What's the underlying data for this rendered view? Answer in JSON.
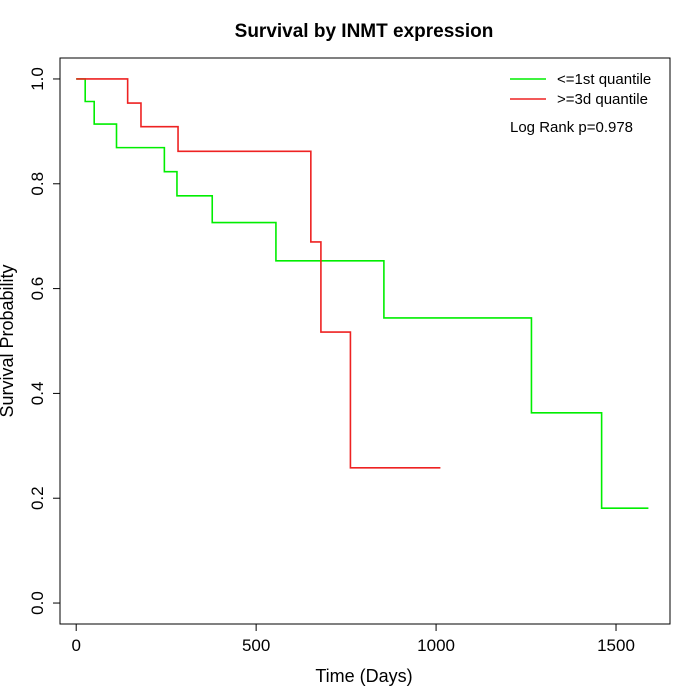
{
  "chart_data": {
    "type": "line",
    "title": "Survival by INMT expression",
    "xlabel": "Time (Days)",
    "ylabel": "Survival Probability",
    "xlim": [
      -45,
      1650
    ],
    "ylim": [
      -0.04,
      1.04
    ],
    "x_ticks": [
      0,
      500,
      1000,
      1500
    ],
    "y_ticks": [
      0.0,
      0.2,
      0.4,
      0.6,
      0.8,
      1.0
    ],
    "x_tick_labels": [
      "0",
      "500",
      "1000",
      "1500"
    ],
    "y_tick_labels": [
      "0.0",
      "0.2",
      "0.4",
      "0.6",
      "0.8",
      "1.0"
    ],
    "grid": false,
    "legend_position": "top-right",
    "annotation": "Log Rank p=0.978",
    "series": [
      {
        "name": "<=1st quantile",
        "color": "#00ee00",
        "steps": [
          [
            0,
            1.0
          ],
          [
            25,
            0.957
          ],
          [
            50,
            0.914
          ],
          [
            112,
            0.869
          ],
          [
            245,
            0.823
          ],
          [
            280,
            0.777
          ],
          [
            378,
            0.726
          ],
          [
            555,
            0.653
          ],
          [
            855,
            0.544
          ],
          [
            1265,
            0.363
          ],
          [
            1460,
            0.181
          ],
          [
            1590,
            0.181
          ]
        ]
      },
      {
        "name": ">=3d quantile",
        "color": "#ee2222",
        "steps": [
          [
            0,
            1.0
          ],
          [
            143,
            0.954
          ],
          [
            180,
            0.909
          ],
          [
            283,
            0.862
          ],
          [
            652,
            0.689
          ],
          [
            680,
            0.517
          ],
          [
            762,
            0.258
          ],
          [
            1012,
            0.258
          ]
        ]
      }
    ]
  }
}
